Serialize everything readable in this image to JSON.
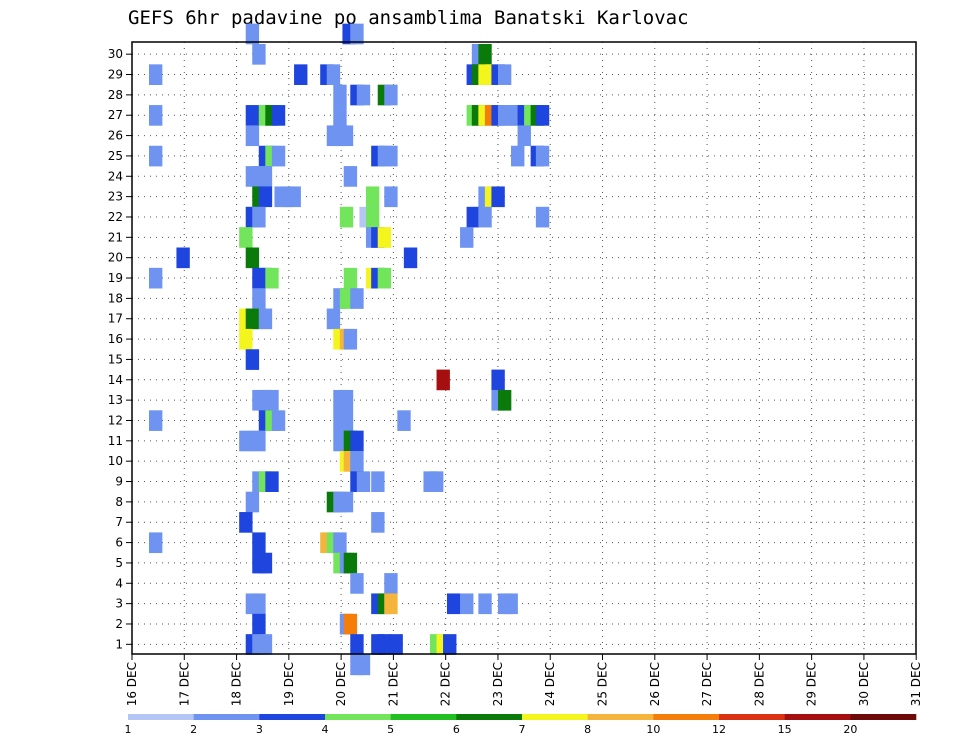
{
  "chart_data": {
    "type": "heatmap",
    "title": "GEFS 6hr padavine po ansamblima Banatski Karlovac",
    "xlabel": "",
    "ylabel": "",
    "x_tick_labels": [
      "16 DEC",
      "17 DEC",
      "18 DEC",
      "19 DEC",
      "20 DEC",
      "21 DEC",
      "22 DEC",
      "23 DEC",
      "24 DEC",
      "25 DEC",
      "26 DEC",
      "27 DEC",
      "28 DEC",
      "29 DEC",
      "30 DEC",
      "31 DEC"
    ],
    "y_tick_labels": [
      "1",
      "2",
      "3",
      "4",
      "5",
      "6",
      "7",
      "8",
      "9",
      "10",
      "11",
      "12",
      "13",
      "14",
      "15",
      "16",
      "17",
      "18",
      "19",
      "20",
      "21",
      "22",
      "23",
      "24",
      "25",
      "26",
      "27",
      "28",
      "29",
      "30"
    ],
    "xlim": [
      0,
      60
    ],
    "ylim": [
      0.5,
      30.5
    ],
    "grid": true,
    "x_unit_note": "6-hour steps from 16 DEC 00z",
    "legend": {
      "placement": "bottom",
      "labels": [
        "1",
        "2",
        "3",
        "4",
        "5",
        "6",
        "7",
        "8",
        "10",
        "12",
        "15",
        "20"
      ],
      "colors": [
        "#b3c6f5",
        "#6e93f0",
        "#1e45dd",
        "#72e55c",
        "#21bf21",
        "#0a7a0a",
        "#f5f51e",
        "#f5b43c",
        "#f57e0a",
        "#db3214",
        "#a50f0f",
        "#6e0a0a"
      ]
    },
    "cells": [
      [
        8.7,
        30,
        1
      ],
      [
        16.1,
        30,
        2
      ],
      [
        16.7,
        30,
        1
      ],
      [
        9.2,
        29,
        1
      ],
      [
        26.0,
        29,
        1
      ],
      [
        26.5,
        29,
        5
      ],
      [
        1.3,
        28,
        1
      ],
      [
        12.4,
        28,
        2
      ],
      [
        14.4,
        28,
        2
      ],
      [
        14.9,
        28,
        1
      ],
      [
        25.6,
        28,
        2
      ],
      [
        26.0,
        28,
        5
      ],
      [
        26.5,
        28,
        6
      ],
      [
        27.0,
        28,
        6
      ],
      [
        27.5,
        28,
        2
      ],
      [
        28.0,
        28,
        1
      ],
      [
        15.4,
        27,
        1
      ],
      [
        16.7,
        27,
        2
      ],
      [
        17.2,
        27,
        1
      ],
      [
        18.8,
        27,
        5
      ],
      [
        19.3,
        27,
        1
      ],
      [
        1.3,
        26,
        1
      ],
      [
        8.7,
        26,
        2
      ],
      [
        9.7,
        26,
        3
      ],
      [
        10.2,
        26,
        5
      ],
      [
        10.7,
        26,
        2
      ],
      [
        15.4,
        26,
        1
      ],
      [
        25.6,
        26,
        3
      ],
      [
        26.0,
        26,
        5
      ],
      [
        26.5,
        26,
        6
      ],
      [
        27.0,
        26,
        8
      ],
      [
        27.5,
        26,
        2
      ],
      [
        28.0,
        26,
        1
      ],
      [
        28.5,
        26,
        1
      ],
      [
        29.0,
        26,
        1
      ],
      [
        29.5,
        26,
        2
      ],
      [
        30.0,
        26,
        3
      ],
      [
        30.5,
        26,
        5
      ],
      [
        30.9,
        26,
        2
      ],
      [
        8.7,
        25,
        1
      ],
      [
        14.9,
        25,
        1
      ],
      [
        15.4,
        25,
        1
      ],
      [
        15.9,
        25,
        1
      ],
      [
        29.5,
        25,
        1
      ],
      [
        1.3,
        24,
        1
      ],
      [
        9.7,
        24,
        2
      ],
      [
        10.2,
        24,
        3
      ],
      [
        10.7,
        24,
        1
      ],
      [
        18.3,
        24,
        2
      ],
      [
        18.8,
        24,
        1
      ],
      [
        19.3,
        24,
        1
      ],
      [
        29.0,
        24,
        1
      ],
      [
        30.5,
        24,
        2
      ],
      [
        30.9,
        24,
        1
      ],
      [
        8.7,
        23,
        1
      ],
      [
        9.2,
        23,
        1
      ],
      [
        9.7,
        23,
        1
      ],
      [
        16.2,
        23,
        1
      ],
      [
        9.2,
        22,
        5
      ],
      [
        9.7,
        22,
        2
      ],
      [
        10.9,
        22,
        1
      ],
      [
        11.4,
        22,
        1
      ],
      [
        11.9,
        22,
        1
      ],
      [
        17.9,
        22,
        3
      ],
      [
        19.3,
        22,
        1
      ],
      [
        26.5,
        22,
        1
      ],
      [
        27.0,
        22,
        6
      ],
      [
        27.5,
        22,
        2
      ],
      [
        8.7,
        21,
        2
      ],
      [
        9.2,
        21,
        1
      ],
      [
        15.9,
        21,
        3
      ],
      [
        17.4,
        21,
        14
      ],
      [
        17.9,
        21,
        3
      ],
      [
        25.6,
        21,
        2
      ],
      [
        26.5,
        21,
        1
      ],
      [
        30.9,
        21,
        1
      ],
      [
        8.2,
        20,
        3
      ],
      [
        17.9,
        20,
        1
      ],
      [
        18.3,
        20,
        2
      ],
      [
        18.8,
        20,
        6
      ],
      [
        25.1,
        20,
        1
      ],
      [
        3.4,
        19,
        2
      ],
      [
        8.7,
        19,
        5
      ],
      [
        20.8,
        19,
        2
      ],
      [
        1.3,
        18,
        1
      ],
      [
        9.2,
        18,
        2
      ],
      [
        9.7,
        18,
        2
      ],
      [
        10.2,
        18,
        3
      ],
      [
        16.2,
        18,
        3
      ],
      [
        17.9,
        18,
        6
      ],
      [
        18.3,
        18,
        2
      ],
      [
        18.8,
        18,
        3
      ],
      [
        9.2,
        17,
        1
      ],
      [
        15.4,
        17,
        1
      ],
      [
        15.9,
        17,
        3
      ],
      [
        16.7,
        17,
        1
      ],
      [
        8.2,
        16,
        6
      ],
      [
        8.7,
        16,
        5
      ],
      [
        9.7,
        16,
        1
      ],
      [
        14.9,
        16,
        1
      ],
      [
        8.2,
        15,
        6
      ],
      [
        15.4,
        15,
        6
      ],
      [
        15.9,
        15,
        7
      ],
      [
        16.2,
        15,
        1
      ],
      [
        8.7,
        14,
        2
      ],
      [
        23.3,
        13,
        10
      ],
      [
        27.5,
        13,
        2
      ],
      [
        9.2,
        12,
        1
      ],
      [
        9.7,
        12,
        1
      ],
      [
        10.2,
        12,
        1
      ],
      [
        15.4,
        12,
        1
      ],
      [
        15.9,
        12,
        1
      ],
      [
        27.5,
        12,
        1
      ],
      [
        28.0,
        12,
        5
      ],
      [
        1.3,
        11,
        1
      ],
      [
        9.7,
        11,
        2
      ],
      [
        10.2,
        11,
        3
      ],
      [
        10.7,
        11,
        1
      ],
      [
        15.4,
        11,
        1
      ],
      [
        15.9,
        11,
        1
      ],
      [
        20.3,
        11,
        1
      ],
      [
        8.2,
        10,
        1
      ],
      [
        9.2,
        10,
        1
      ],
      [
        15.4,
        10,
        1
      ],
      [
        16.2,
        10,
        5
      ],
      [
        16.7,
        10,
        2
      ],
      [
        15.9,
        9,
        6
      ],
      [
        16.2,
        9,
        7
      ],
      [
        16.7,
        9,
        1
      ],
      [
        9.2,
        8,
        1
      ],
      [
        9.7,
        8,
        3
      ],
      [
        10.2,
        8,
        2
      ],
      [
        16.7,
        8,
        2
      ],
      [
        17.2,
        8,
        1
      ],
      [
        18.3,
        8,
        1
      ],
      [
        22.3,
        8,
        1
      ],
      [
        22.8,
        8,
        1
      ],
      [
        8.7,
        7,
        1
      ],
      [
        14.9,
        7,
        5
      ],
      [
        15.4,
        7,
        1
      ],
      [
        15.9,
        7,
        1
      ],
      [
        8.2,
        6,
        2
      ],
      [
        18.3,
        6,
        1
      ],
      [
        1.3,
        5,
        1
      ],
      [
        9.2,
        5,
        2
      ],
      [
        14.4,
        5,
        7
      ],
      [
        14.9,
        5,
        3
      ],
      [
        15.4,
        5,
        1
      ],
      [
        9.2,
        4,
        2
      ],
      [
        9.7,
        4,
        2
      ],
      [
        15.4,
        4,
        3
      ],
      [
        15.9,
        4,
        1
      ],
      [
        16.2,
        4,
        5
      ],
      [
        16.7,
        3,
        1
      ],
      [
        19.3,
        3,
        1
      ],
      [
        8.7,
        2,
        1
      ],
      [
        9.2,
        2,
        1
      ],
      [
        18.3,
        2,
        2
      ],
      [
        18.8,
        2,
        5
      ],
      [
        19.3,
        2,
        7
      ],
      [
        24.1,
        2,
        2
      ],
      [
        25.1,
        2,
        1
      ],
      [
        26.5,
        2,
        1
      ],
      [
        28.0,
        2,
        1
      ],
      [
        28.5,
        2,
        1
      ],
      [
        9.2,
        1,
        2
      ],
      [
        15.9,
        1,
        1
      ],
      [
        16.2,
        1,
        8
      ],
      [
        8.7,
        0,
        2
      ],
      [
        9.2,
        0,
        1
      ],
      [
        9.7,
        0,
        1
      ],
      [
        16.7,
        0,
        2
      ],
      [
        18.3,
        0,
        2
      ],
      [
        18.8,
        0,
        2
      ],
      [
        19.7,
        0,
        2
      ],
      [
        22.8,
        0,
        3
      ],
      [
        23.3,
        0,
        6
      ],
      [
        23.8,
        0,
        2
      ],
      [
        16.7,
        -1,
        1
      ],
      [
        17.2,
        -1,
        1
      ]
    ]
  }
}
